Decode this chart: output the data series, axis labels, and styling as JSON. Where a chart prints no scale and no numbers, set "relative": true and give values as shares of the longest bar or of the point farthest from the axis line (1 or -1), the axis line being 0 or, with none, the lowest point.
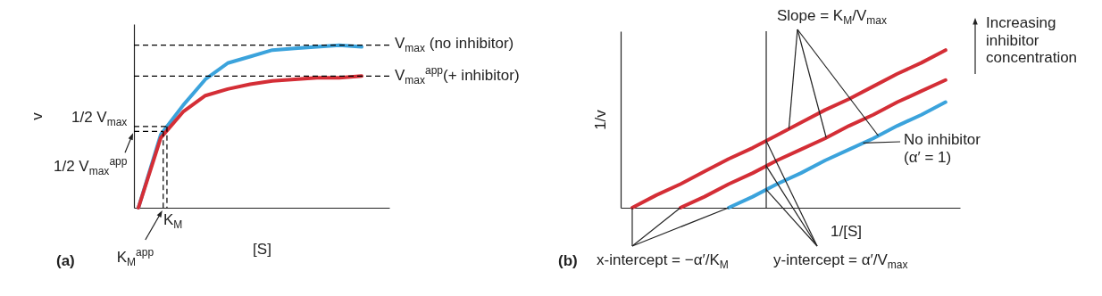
{
  "chart_data": [
    {
      "type": "line",
      "title": "(a)",
      "xlabel": "[S]",
      "ylabel": "v",
      "relative": true,
      "categories": [
        null,
        null,
        null,
        null,
        null,
        null,
        null,
        null,
        null,
        null,
        null
      ],
      "series": [
        {
          "color": "#3ba3dc",
          "values": [
            0,
            0.45,
            0.63,
            0.79,
            0.89,
            0.93,
            0.97,
            0.98,
            0.99,
            1,
            0.99
          ]
        },
        {
          "color": "#d42e36",
          "values": [
            0,
            0.43,
            0.59,
            0.69,
            0.73,
            0.76,
            0.78,
            0.79,
            0.8,
            0.8,
            0.81
          ]
        }
      ],
      "ref_lines": [
        {
          "axis": "y",
          "value": 1,
          "label": "V$_{max}$ (no inhibitor)",
          "line_style": "dashed",
          "color": "#000000"
        },
        {
          "axis": "y",
          "value": 0.81,
          "label": "V$_{max}$$^{app}$(+ inhibitor)",
          "line_style": "dashed",
          "color": "#000000"
        },
        {
          "axis": "y",
          "value": 0.5,
          "label": "1/2 V$_{max}$",
          "line_style": "dashed",
          "color": "#000000"
        },
        {
          "axis": "y",
          "value": 0.47,
          "label": "1/2 V$_{max}$$^{app}$",
          "line_style": "dashed",
          "color": "#000000"
        }
      ],
      "annotations": [
        "K$_{M}$",
        "K$_{M}$$^{app}$"
      ]
    },
    {
      "type": "line",
      "title": "(b)",
      "xlabel": "1/[S]",
      "ylabel": "1/v",
      "relative": true,
      "categories": [
        null,
        null,
        null,
        null,
        null,
        null,
        null,
        null,
        null,
        null,
        null,
        null,
        null,
        null
      ],
      "series": [
        {
          "color": "#d42e36",
          "values": [
            0,
            0.08,
            0.15,
            0.23,
            0.31,
            0.38,
            0.46,
            0.54,
            0.62,
            0.69,
            0.77,
            0.85,
            0.92,
            1
          ]
        },
        {
          "color": "#d42e36",
          "values": [
            null,
            null,
            0,
            0.07,
            0.15,
            0.22,
            0.3,
            0.37,
            0.44,
            0.52,
            0.59,
            0.67,
            0.74,
            0.81
          ]
        },
        {
          "name": "No inhibitor (α′ = 1)",
          "color": "#3ba3dc",
          "values": [
            null,
            null,
            null,
            null,
            0,
            0.07,
            0.15,
            0.22,
            0.3,
            0.37,
            0.44,
            0.52,
            0.59,
            0.67
          ]
        }
      ],
      "annotations": [
        "Slope = K$_{M}$/V$_{max}$",
        "Increasing inhibitor concentration",
        "x-intercept = −α′/K$_{M}$",
        "y-intercept = α′/V$_{max}$"
      ]
    }
  ]
}
